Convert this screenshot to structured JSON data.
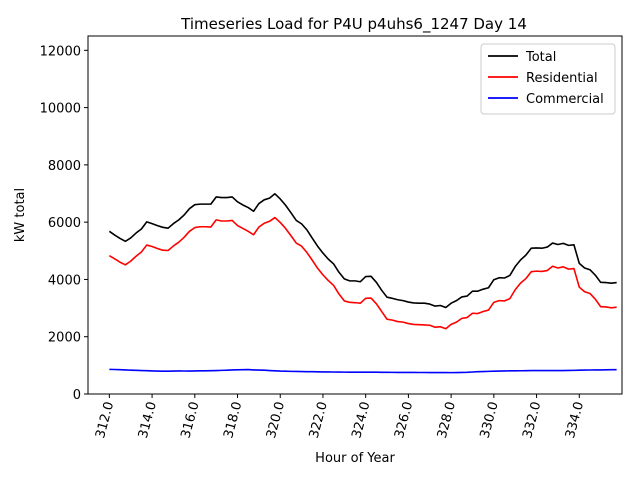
{
  "chart_data": {
    "type": "line",
    "title": "Timeseries Load for P4U p4uhs6_1247  Day 14",
    "xlabel": "Hour of Year",
    "ylabel": "kW total",
    "xlim": [
      311.0,
      336.0
    ],
    "ylim": [
      0,
      12500
    ],
    "xticks": [
      312,
      314,
      316,
      318,
      320,
      322,
      324,
      326,
      328,
      330,
      332,
      334
    ],
    "xtick_labels": [
      "312.0",
      "314.0",
      "316.0",
      "318.0",
      "320.0",
      "322.0",
      "324.0",
      "326.0",
      "328.0",
      "330.0",
      "332.0",
      "334.0"
    ],
    "yticks": [
      0,
      2000,
      4000,
      6000,
      8000,
      10000,
      12000
    ],
    "ytick_labels": [
      "0",
      "2000",
      "4000",
      "6000",
      "8000",
      "10000",
      "12000"
    ],
    "legend_position": "top-right",
    "x": [
      312.0,
      312.25,
      312.5,
      312.75,
      313.0,
      313.25,
      313.5,
      313.75,
      314.0,
      314.25,
      314.5,
      314.75,
      315.0,
      315.25,
      315.5,
      315.75,
      316.0,
      316.25,
      316.5,
      316.75,
      317.0,
      317.25,
      317.5,
      317.75,
      318.0,
      318.25,
      318.5,
      318.75,
      319.0,
      319.25,
      319.5,
      319.75,
      320.0,
      320.25,
      320.5,
      320.75,
      321.0,
      321.25,
      321.5,
      321.75,
      322.0,
      322.25,
      322.5,
      322.75,
      323.0,
      323.25,
      323.5,
      323.75,
      324.0,
      324.25,
      324.5,
      324.75,
      325.0,
      325.25,
      325.5,
      325.75,
      326.0,
      326.25,
      326.5,
      326.75,
      327.0,
      327.25,
      327.5,
      327.75,
      328.0,
      328.25,
      328.5,
      328.75,
      329.0,
      329.25,
      329.5,
      329.75,
      330.0,
      330.25,
      330.5,
      330.75,
      331.0,
      331.25,
      331.5,
      331.75,
      332.0,
      332.25,
      332.5,
      332.75,
      333.0,
      333.25,
      333.5,
      333.75,
      334.0,
      334.25,
      334.5,
      334.75,
      335.0,
      335.25,
      335.5,
      335.75
    ],
    "series": [
      {
        "name": "Total",
        "color": "#000000",
        "values": [
          5680,
          5550,
          5430,
          5330,
          5450,
          5620,
          5760,
          6010,
          5950,
          5880,
          5820,
          5790,
          5950,
          6080,
          6250,
          6470,
          6610,
          6630,
          6630,
          6630,
          6880,
          6860,
          6860,
          6880,
          6710,
          6600,
          6510,
          6380,
          6650,
          6780,
          6840,
          6990,
          6810,
          6590,
          6330,
          6060,
          5940,
          5730,
          5440,
          5160,
          4920,
          4710,
          4540,
          4250,
          4020,
          3950,
          3950,
          3920,
          4100,
          4110,
          3900,
          3620,
          3380,
          3340,
          3290,
          3260,
          3210,
          3180,
          3170,
          3170,
          3140,
          3070,
          3090,
          3020,
          3170,
          3260,
          3390,
          3420,
          3590,
          3590,
          3660,
          3710,
          3990,
          4060,
          4050,
          4140,
          4450,
          4680,
          4850,
          5090,
          5100,
          5090,
          5130,
          5270,
          5220,
          5260,
          5190,
          5210,
          4560,
          4400,
          4340,
          4150,
          3900,
          3890,
          3870,
          3890
        ]
      },
      {
        "name": "Residential",
        "color": "#ff0000",
        "values": [
          4830,
          4720,
          4600,
          4510,
          4640,
          4810,
          4960,
          5200,
          5150,
          5080,
          5020,
          5010,
          5170,
          5300,
          5470,
          5680,
          5810,
          5840,
          5840,
          5830,
          6080,
          6040,
          6040,
          6060,
          5880,
          5780,
          5680,
          5560,
          5830,
          5960,
          6030,
          6160,
          5990,
          5780,
          5530,
          5270,
          5160,
          4940,
          4670,
          4390,
          4160,
          3960,
          3790,
          3490,
          3250,
          3200,
          3190,
          3170,
          3340,
          3350,
          3150,
          2880,
          2610,
          2580,
          2530,
          2510,
          2460,
          2430,
          2420,
          2410,
          2400,
          2330,
          2350,
          2280,
          2430,
          2510,
          2640,
          2670,
          2820,
          2810,
          2880,
          2930,
          3200,
          3260,
          3250,
          3330,
          3640,
          3870,
          4030,
          4270,
          4290,
          4280,
          4310,
          4460,
          4400,
          4440,
          4360,
          4380,
          3730,
          3570,
          3510,
          3310,
          3050,
          3040,
          3010,
          3030
        ]
      },
      {
        "name": "Commercial",
        "color": "#0000ff",
        "values": [
          860,
          855,
          848,
          840,
          833,
          826,
          820,
          813,
          806,
          800,
          797,
          795,
          800,
          805,
          803,
          800,
          805,
          808,
          810,
          815,
          820,
          825,
          830,
          840,
          845,
          850,
          852,
          840,
          835,
          830,
          820,
          810,
          800,
          795,
          790,
          788,
          782,
          780,
          778,
          775,
          772,
          770,
          768,
          766,
          764,
          762,
          762,
          762,
          762,
          762,
          760,
          758,
          756,
          755,
          754,
          753,
          752,
          752,
          751,
          751,
          750,
          749,
          748,
          747,
          746,
          748,
          752,
          758,
          768,
          778,
          785,
          790,
          795,
          800,
          805,
          808,
          810,
          812,
          815,
          817,
          818,
          818,
          818,
          818,
          818,
          820,
          822,
          825,
          830,
          835,
          838,
          840,
          842,
          845,
          848,
          850
        ]
      }
    ]
  }
}
